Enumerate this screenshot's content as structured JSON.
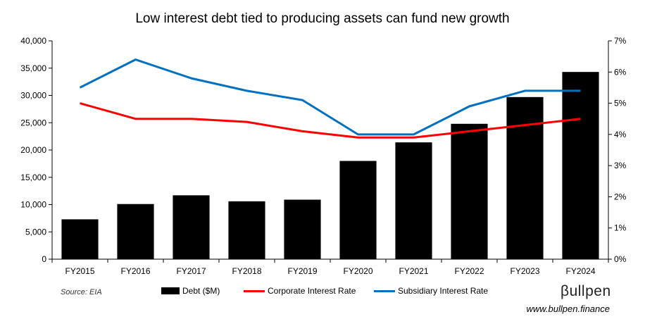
{
  "chart_data": {
    "type": "bar",
    "title": "Low interest debt tied to producing assets can fund new growth",
    "categories": [
      "FY2015",
      "FY2016",
      "FY2017",
      "FY2018",
      "FY2019",
      "FY2020",
      "FY2021",
      "FY2022",
      "FY2023",
      "FY2024"
    ],
    "series": [
      {
        "name": "Debt ($M)",
        "type": "bar",
        "axis": "left",
        "color": "#000000",
        "values": [
          7300,
          10100,
          11700,
          10600,
          10900,
          18000,
          21400,
          24800,
          29700,
          34300
        ]
      },
      {
        "name": "Corporate Interest Rate",
        "type": "line",
        "axis": "right",
        "color": "#ff0000",
        "values": [
          5.0,
          4.5,
          4.5,
          4.4,
          4.1,
          3.9,
          3.9,
          4.1,
          4.3,
          4.5
        ]
      },
      {
        "name": "Subsidiary Interest Rate",
        "type": "line",
        "axis": "right",
        "color": "#0070c0",
        "values": [
          5.5,
          6.4,
          5.8,
          5.4,
          5.1,
          4.0,
          4.0,
          4.9,
          5.4,
          5.4
        ]
      }
    ],
    "y_left": {
      "min": 0,
      "max": 40000,
      "step": 5000,
      "tick_labels": [
        "0",
        "5,000",
        "10,000",
        "15,000",
        "20,000",
        "25,000",
        "30,000",
        "35,000",
        "40,000"
      ]
    },
    "y_right": {
      "min": 0,
      "max": 7,
      "step": 1,
      "tick_labels": [
        "0%",
        "1%",
        "2%",
        "3%",
        "4%",
        "5%",
        "6%",
        "7%"
      ]
    },
    "grid": false,
    "legend_position": "bottom"
  },
  "footer": {
    "source": "Source: EIA",
    "brand": "βullpen",
    "website": "www.bullpen.finance"
  }
}
